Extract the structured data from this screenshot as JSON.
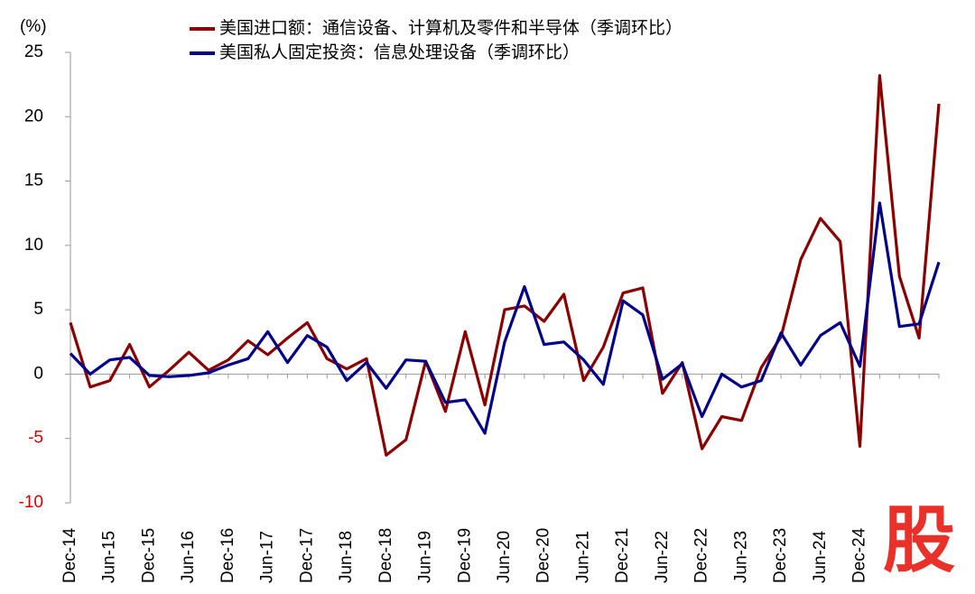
{
  "chart_data": {
    "type": "line",
    "y_unit": "(%)",
    "categories": [
      "Dec-14",
      null,
      "Jun-15",
      null,
      "Dec-15",
      null,
      "Jun-16",
      null,
      "Dec-16",
      null,
      "Jun-17",
      null,
      "Dec-17",
      null,
      "Jun-18",
      null,
      "Dec-18",
      null,
      "Jun-19",
      null,
      "Dec-19",
      null,
      "Jun-20",
      null,
      "Dec-20",
      null,
      "Jun-21",
      null,
      "Dec-21",
      null,
      "Jun-22",
      null,
      "Dec-22",
      null,
      "Jun-23",
      null,
      "Dec-23",
      null,
      "Jun-24",
      null,
      "Dec-24",
      null,
      null,
      null,
      null
    ],
    "series": [
      {
        "name": "美国进口额：通信设备、计算机及零件和半导体（季调环比）",
        "color": "#8b0000",
        "values": [
          4.0,
          -1.0,
          -0.5,
          2.3,
          -1.0,
          0.3,
          1.7,
          0.3,
          1.1,
          2.6,
          1.5,
          2.8,
          4.0,
          1.2,
          0.4,
          1.2,
          -6.3,
          -5.1,
          1.0,
          -2.9,
          3.3,
          -2.4,
          5.0,
          5.3,
          4.1,
          6.2,
          -0.5,
          2.1,
          6.3,
          6.7,
          -1.5,
          0.9,
          -5.8,
          -3.3,
          -3.6,
          0.5,
          2.9,
          8.9,
          12.1,
          10.3,
          -5.6,
          23.2,
          7.6,
          2.8,
          21.0
        ]
      },
      {
        "name": "美国私人固定投资：信息处理设备（季调环比）",
        "color": "#00008b",
        "values": [
          1.6,
          0.0,
          1.1,
          1.3,
          -0.1,
          -0.2,
          -0.1,
          0.1,
          0.7,
          1.2,
          3.3,
          0.9,
          3.0,
          2.1,
          -0.5,
          0.9,
          -1.1,
          1.1,
          1.0,
          -2.2,
          -2.0,
          -4.6,
          2.5,
          6.8,
          2.3,
          2.5,
          1.1,
          -0.8,
          5.7,
          4.6,
          -0.4,
          0.8,
          -3.3,
          0.0,
          -1.0,
          -0.5,
          3.2,
          0.7,
          3.0,
          4.0,
          0.6,
          13.3,
          3.7,
          3.9,
          8.7
        ]
      }
    ],
    "ylim": [
      -10,
      25
    ],
    "yticks": [
      -10,
      -5,
      0,
      5,
      10,
      15,
      20,
      25
    ],
    "negative_tick_color": "#e00000",
    "legend": "top",
    "watermark": "股"
  }
}
